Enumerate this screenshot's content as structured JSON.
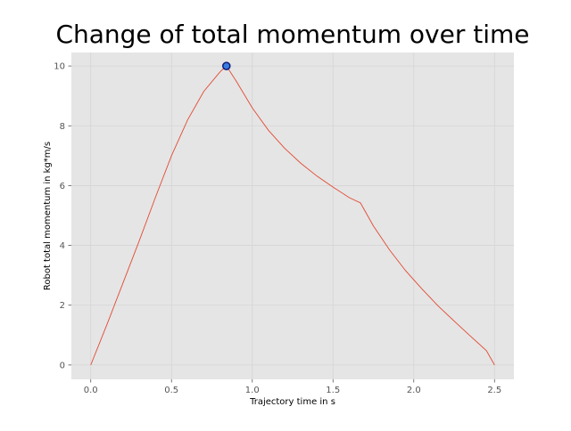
{
  "chart_data": {
    "type": "line",
    "title": "Change of total momentum over time",
    "xlabel": "Trajectory time in s",
    "ylabel": "Robot total momentum in kg*m/s",
    "xlim": [
      -0.12,
      2.62
    ],
    "ylim": [
      -0.48,
      10.45
    ],
    "xticks": [
      0.0,
      0.5,
      1.0,
      1.5,
      2.0,
      2.5
    ],
    "xtick_labels": [
      "0.0",
      "0.5",
      "1.0",
      "1.5",
      "2.0",
      "2.5"
    ],
    "yticks": [
      0,
      2,
      4,
      6,
      8,
      10
    ],
    "ytick_labels": [
      "0",
      "2",
      "4",
      "6",
      "8",
      "10"
    ],
    "grid": true,
    "background": "#e5e5e5",
    "grid_color": "#d5d5d5",
    "line_color": "#e24a33",
    "marker_fill": "#3a7de0",
    "marker_edge": "#0d1b7a",
    "series": [
      {
        "x": [
          0.0,
          0.1,
          0.2,
          0.3,
          0.4,
          0.5,
          0.6,
          0.7,
          0.8,
          0.84,
          0.9,
          1.0,
          1.1,
          1.2,
          1.3,
          1.4,
          1.5,
          1.6,
          1.67,
          1.75,
          1.85,
          1.95,
          2.05,
          2.15,
          2.25,
          2.35,
          2.45,
          2.5
        ],
        "y": [
          0.0,
          1.35,
          2.75,
          4.15,
          5.6,
          7.0,
          8.2,
          9.15,
          9.8,
          10.0,
          9.5,
          8.6,
          7.85,
          7.25,
          6.75,
          6.32,
          5.95,
          5.6,
          5.42,
          4.65,
          3.85,
          3.15,
          2.55,
          1.98,
          1.47,
          0.97,
          0.48,
          0.0
        ]
      }
    ],
    "highlight_point": {
      "x": 0.84,
      "y": 10.0
    }
  }
}
